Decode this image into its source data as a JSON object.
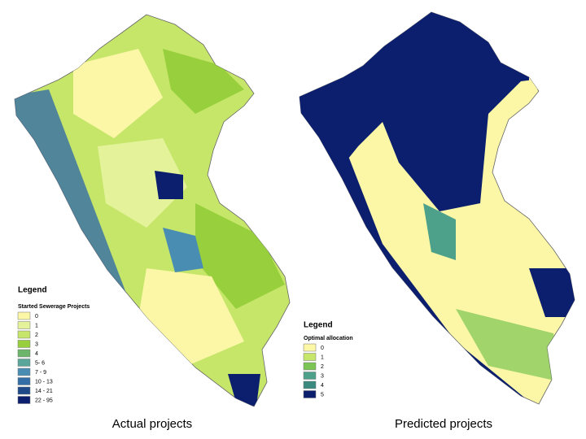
{
  "maps": [
    {
      "caption": "Actual projects",
      "legend": {
        "title": "Legend",
        "subtitle": "Started Sewerage Projects",
        "items": [
          {
            "label": "0",
            "color": "#fbf7a6"
          },
          {
            "label": "1",
            "color": "#e4f39a"
          },
          {
            "label": "2",
            "color": "#c6e66a"
          },
          {
            "label": "3",
            "color": "#98cf3c"
          },
          {
            "label": "4",
            "color": "#6cb56a"
          },
          {
            "label": "5- 6",
            "color": "#5aa69a"
          },
          {
            "label": "7 - 9",
            "color": "#4a8db3"
          },
          {
            "label": "10 - 13",
            "color": "#336ea6"
          },
          {
            "label": "14 - 21",
            "color": "#1f4a8a"
          },
          {
            "label": "22 - 95",
            "color": "#0c1f6e"
          }
        ]
      }
    },
    {
      "caption": "Predicted projects",
      "legend": {
        "title": "Legend",
        "subtitle": "Optimal allocation",
        "items": [
          {
            "label": "0",
            "color": "#fbf7a6"
          },
          {
            "label": "1",
            "color": "#c6e66a"
          },
          {
            "label": "2",
            "color": "#7cc454"
          },
          {
            "label": "3",
            "color": "#4da08a"
          },
          {
            "label": "4",
            "color": "#3a8a80"
          },
          {
            "label": "5",
            "color": "#0c1f6e"
          }
        ]
      }
    }
  ]
}
